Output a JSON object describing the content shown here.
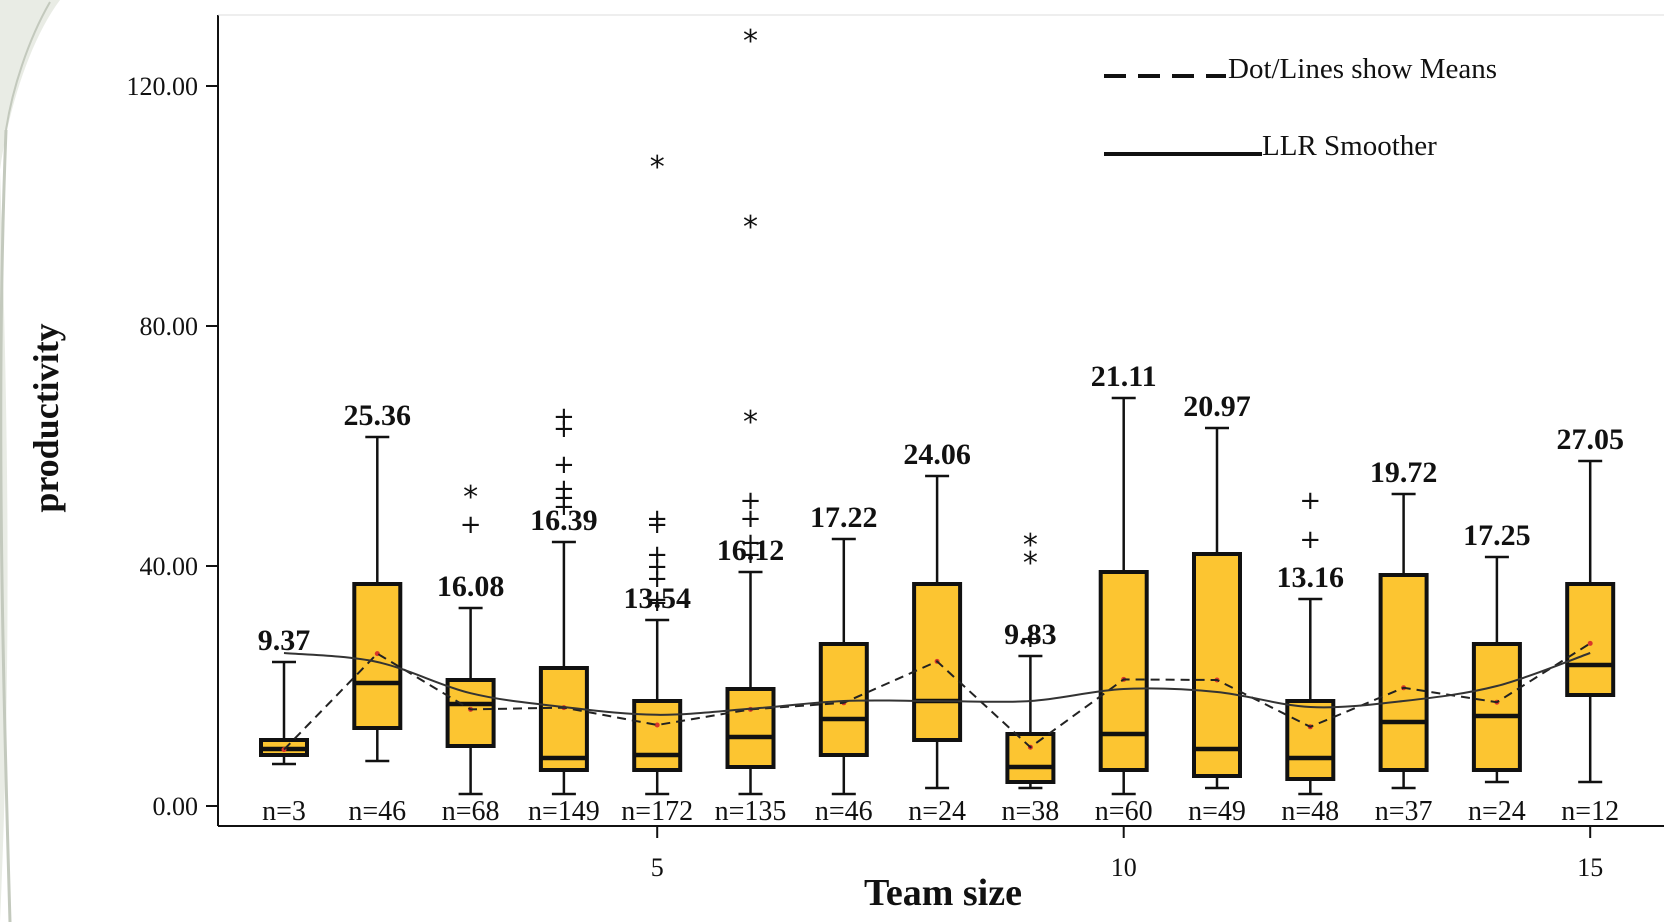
{
  "chart_data": {
    "type": "box",
    "xlabel": "Team size",
    "ylabel": "productivity",
    "ylim": [
      0,
      120
    ],
    "xlim": [
      0.5,
      15.5
    ],
    "yticks": [
      "0.00",
      "40.00",
      "80.00",
      "120.00"
    ],
    "ytick_values": [
      0,
      40,
      80,
      120
    ],
    "xticks": [
      "5",
      "10",
      "15"
    ],
    "xtick_values": [
      5,
      10,
      15
    ],
    "legend": [
      {
        "label": "Dot/Lines show Means",
        "style": "dashed"
      },
      {
        "label": "LLR Smoother",
        "style": "solid"
      }
    ],
    "box_color": "#FCC531",
    "groups": [
      {
        "x": 1,
        "n_label": "n=3",
        "mean_label": "9.37",
        "mean": 9.4,
        "min": 7,
        "q1": 8.5,
        "median": 9.5,
        "q3": 11,
        "max": 24,
        "outliers": []
      },
      {
        "x": 2,
        "n_label": "n=46",
        "mean_label": "25.36",
        "mean": 25.4,
        "min": 7.5,
        "q1": 13,
        "median": 20.5,
        "q3": 37,
        "max": 61.5,
        "outliers": []
      },
      {
        "x": 3,
        "n_label": "n=68",
        "mean_label": "16.08",
        "mean": 16.1,
        "min": 2,
        "q1": 10,
        "median": 17,
        "q3": 21,
        "max": 33,
        "outliers": [
          {
            "y": 47,
            "mark": "+"
          },
          {
            "y": 52,
            "mark": "*"
          }
        ]
      },
      {
        "x": 4,
        "n_label": "n=149",
        "mean_label": "16.39",
        "mean": 16.4,
        "min": 2,
        "q1": 6,
        "median": 8,
        "q3": 23,
        "max": 44,
        "outliers": [
          {
            "y": 50,
            "mark": "+"
          },
          {
            "y": 51.5,
            "mark": "+"
          },
          {
            "y": 53,
            "mark": "+"
          },
          {
            "y": 57,
            "mark": "+"
          },
          {
            "y": 63,
            "mark": "+"
          },
          {
            "y": 65,
            "mark": "+"
          }
        ]
      },
      {
        "x": 5,
        "n_label": "n=172",
        "mean_label": "13.54",
        "mean": 13.5,
        "min": 2,
        "q1": 6,
        "median": 8.5,
        "q3": 17.5,
        "max": 31,
        "outliers": [
          {
            "y": 34,
            "mark": "+"
          },
          {
            "y": 34.5,
            "mark": "+"
          },
          {
            "y": 38,
            "mark": "+"
          },
          {
            "y": 40,
            "mark": "+"
          },
          {
            "y": 42,
            "mark": "+"
          },
          {
            "y": 47,
            "mark": "+"
          },
          {
            "y": 48,
            "mark": "+"
          },
          {
            "y": 107,
            "mark": "*"
          }
        ]
      },
      {
        "x": 6,
        "n_label": "n=135",
        "mean_label": "16.12",
        "mean": 16.1,
        "min": 2,
        "q1": 6.5,
        "median": 11.5,
        "q3": 19.5,
        "max": 39,
        "outliers": [
          {
            "y": 42,
            "mark": "+"
          },
          {
            "y": 44,
            "mark": "+"
          },
          {
            "y": 48,
            "mark": "+"
          },
          {
            "y": 51,
            "mark": "+"
          },
          {
            "y": 64.5,
            "mark": "*"
          },
          {
            "y": 97,
            "mark": "*"
          },
          {
            "y": 128,
            "mark": "*"
          }
        ]
      },
      {
        "x": 7,
        "n_label": "n=46",
        "mean_label": "17.22",
        "mean": 17.2,
        "min": 2,
        "q1": 8.5,
        "median": 14.5,
        "q3": 27,
        "max": 44.5,
        "outliers": []
      },
      {
        "x": 8,
        "n_label": "n=24",
        "mean_label": "24.06",
        "mean": 24.1,
        "min": 3,
        "q1": 11,
        "median": 17.5,
        "q3": 37,
        "max": 55,
        "outliers": []
      },
      {
        "x": 9,
        "n_label": "n=38",
        "mean_label": "9.83",
        "mean": 9.8,
        "min": 3,
        "q1": 4,
        "median": 6.5,
        "q3": 12,
        "max": 25,
        "outliers": [
          {
            "y": 28,
            "mark": "+"
          },
          {
            "y": 41,
            "mark": "*"
          },
          {
            "y": 44,
            "mark": "*"
          }
        ]
      },
      {
        "x": 10,
        "n_label": "n=60",
        "mean_label": "21.11",
        "mean": 21.1,
        "min": 2,
        "q1": 6,
        "median": 12,
        "q3": 39,
        "max": 68,
        "outliers": []
      },
      {
        "x": 11,
        "n_label": "n=49",
        "mean_label": "20.97",
        "mean": 21.0,
        "min": 3,
        "q1": 5,
        "median": 9.5,
        "q3": 42,
        "max": 63,
        "outliers": []
      },
      {
        "x": 12,
        "n_label": "n=48",
        "mean_label": "13.16",
        "mean": 13.2,
        "min": 2,
        "q1": 4.5,
        "median": 8,
        "q3": 17.5,
        "max": 34.5,
        "outliers": [
          {
            "y": 44.5,
            "mark": "+"
          },
          {
            "y": 51,
            "mark": "+"
          }
        ]
      },
      {
        "x": 13,
        "n_label": "n=37",
        "mean_label": "19.72",
        "mean": 19.7,
        "min": 3,
        "q1": 6,
        "median": 14,
        "q3": 38.5,
        "max": 52,
        "outliers": []
      },
      {
        "x": 14,
        "n_label": "n=24",
        "mean_label": "17.25",
        "mean": 17.3,
        "min": 4,
        "q1": 6,
        "median": 15,
        "q3": 27,
        "max": 41.5,
        "outliers": []
      },
      {
        "x": 15,
        "n_label": "n=12",
        "mean_label": "27.05",
        "mean": 27.1,
        "min": 4,
        "q1": 18.5,
        "median": 23.5,
        "q3": 37,
        "max": 57.5,
        "outliers": []
      }
    ],
    "smoother": [
      25.5,
      24,
      18.8,
      16.5,
      15.2,
      16.2,
      17.5,
      17.5,
      17.5,
      19.5,
      19,
      16.5,
      17.5,
      20,
      25.5
    ]
  }
}
